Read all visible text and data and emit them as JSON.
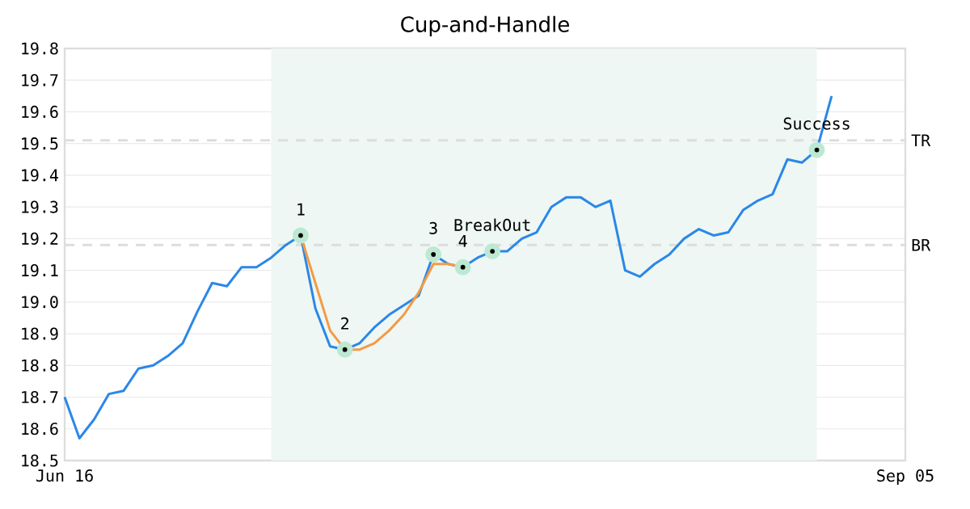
{
  "chart_data": {
    "type": "line",
    "title": "Cup-and-Handle",
    "categories": [
      "Jun 16",
      null,
      null,
      null,
      null,
      null,
      null,
      null,
      null,
      null,
      null,
      null,
      null,
      null,
      null,
      null,
      null,
      null,
      null,
      null,
      null,
      null,
      null,
      null,
      null,
      null,
      null,
      null,
      null,
      null,
      null,
      null,
      null,
      null,
      null,
      null,
      null,
      null,
      null,
      null,
      null,
      null,
      null,
      null,
      null,
      null,
      null,
      null,
      null,
      null,
      null,
      null,
      null,
      null,
      null,
      null,
      null,
      "Sep 05"
    ],
    "series": [
      {
        "color": "#2b87e8",
        "values": [
          18.7,
          18.57,
          18.63,
          18.71,
          18.72,
          18.79,
          18.8,
          18.83,
          18.87,
          18.97,
          19.06,
          19.05,
          19.11,
          19.11,
          19.14,
          19.18,
          19.21,
          18.98,
          18.86,
          18.85,
          18.87,
          18.92,
          18.96,
          18.99,
          19.02,
          19.15,
          19.12,
          19.11,
          19.14,
          19.16,
          19.16,
          19.2,
          19.22,
          19.3,
          19.33,
          19.33,
          19.3,
          19.32,
          19.1,
          19.08,
          19.12,
          19.15,
          19.2,
          19.23,
          19.21,
          19.22,
          19.29,
          19.32,
          19.34,
          19.45,
          19.44,
          19.48,
          19.65,
          null,
          null,
          null,
          null,
          null
        ]
      },
      {
        "color": "#f59a45",
        "values": [
          null,
          null,
          null,
          null,
          null,
          null,
          null,
          null,
          null,
          null,
          null,
          null,
          null,
          null,
          null,
          null,
          19.21,
          19.06,
          18.91,
          18.85,
          18.85,
          18.87,
          18.91,
          18.96,
          19.03,
          19.12,
          19.12,
          19.11,
          null,
          null,
          null,
          null,
          null,
          null,
          null,
          null,
          null,
          null,
          null,
          null,
          null,
          null,
          null,
          null,
          null,
          null,
          null,
          null,
          null,
          null,
          null,
          null,
          null,
          null,
          null,
          null,
          null,
          null
        ]
      },
      {
        "type": "scatter",
        "color": "#bde8d2",
        "values": [
          null,
          null,
          null,
          null,
          null,
          null,
          null,
          null,
          null,
          null,
          null,
          null,
          null,
          null,
          null,
          null,
          19.21,
          null,
          null,
          18.85,
          null,
          null,
          null,
          null,
          null,
          19.15,
          null,
          19.11,
          null,
          19.16,
          null,
          null,
          null,
          null,
          null,
          null,
          null,
          null,
          null,
          null,
          null,
          null,
          null,
          null,
          null,
          null,
          null,
          null,
          null,
          null,
          null,
          19.48,
          null,
          null,
          null,
          null,
          null,
          null
        ]
      }
    ],
    "annotations": [
      "1",
      "2",
      "3",
      "4",
      "BreakOut",
      "Success"
    ],
    "ref_lines": [
      {
        "axis": "y",
        "value": 19.51,
        "label": "TR",
        "color": "#dddddd",
        "line_style": "dashed"
      },
      {
        "axis": "y",
        "value": 19.18,
        "label": "BR",
        "color": "#dddddd",
        "line_style": "dashed"
      }
    ],
    "ylim": [
      18.5,
      19.8
    ],
    "yticks": [
      18.5,
      18.6,
      18.7,
      18.8,
      18.9,
      {
        "value": 19,
        "label": "19.0"
      },
      19.1,
      19.2,
      19.3,
      19.4,
      19.5,
      19.6,
      19.7,
      19.8
    ],
    "grid": "y"
  }
}
